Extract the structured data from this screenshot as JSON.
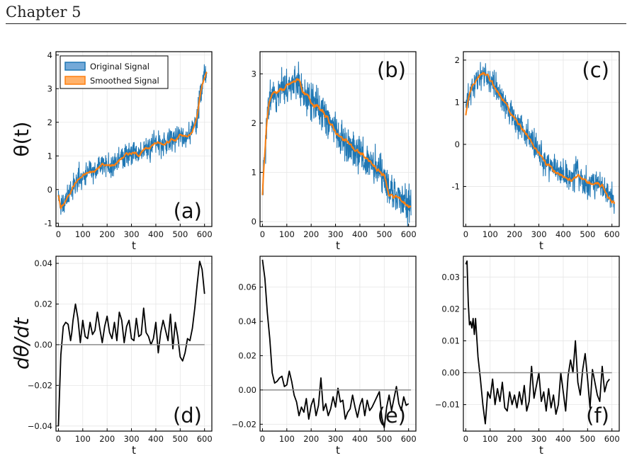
{
  "header": {
    "title": "Chapter 5"
  },
  "chart_data": [
    {
      "panel": "(a)",
      "type": "line",
      "xlabel": "t",
      "ylabel": "θ(t)",
      "xlim": [
        -10,
        630
      ],
      "ylim": [
        -1.1,
        4.1
      ],
      "xticks": [
        0,
        100,
        200,
        300,
        400,
        500,
        600
      ],
      "yticks": [
        -1,
        0,
        1,
        2,
        3,
        4
      ],
      "grid": true,
      "legend": "top-left",
      "series": [
        {
          "name": "Original Signal",
          "role": "noisy",
          "color": "#1f77b4",
          "noise": 0.17,
          "seed": 11,
          "x": [
            0,
            10,
            20,
            40,
            60,
            80,
            100,
            120,
            150,
            180,
            200,
            230,
            260,
            280,
            300,
            330,
            360,
            380,
            400,
            430,
            460,
            480,
            500,
            520,
            540,
            560,
            570,
            580,
            590,
            600,
            610
          ],
          "y": [
            -0.15,
            -0.55,
            -0.45,
            -0.2,
            0.1,
            0.3,
            0.4,
            0.5,
            0.55,
            0.75,
            0.7,
            0.75,
            0.95,
            1.05,
            1.1,
            1.05,
            1.2,
            1.3,
            1.4,
            1.35,
            1.5,
            1.45,
            1.6,
            1.55,
            1.6,
            1.9,
            2.2,
            2.7,
            3.1,
            3.4,
            3.55
          ]
        },
        {
          "name": "Smoothed Signal",
          "role": "smooth",
          "color": "#ff7f0e",
          "x": [
            0,
            10,
            20,
            40,
            60,
            80,
            100,
            120,
            150,
            180,
            200,
            230,
            260,
            280,
            300,
            330,
            360,
            380,
            400,
            430,
            460,
            480,
            500,
            520,
            540,
            560,
            570,
            580,
            590,
            600,
            610
          ],
          "y": [
            -0.15,
            -0.55,
            -0.45,
            -0.2,
            0.1,
            0.3,
            0.4,
            0.5,
            0.55,
            0.75,
            0.7,
            0.75,
            0.95,
            1.05,
            1.1,
            1.05,
            1.2,
            1.3,
            1.4,
            1.35,
            1.5,
            1.45,
            1.6,
            1.55,
            1.6,
            1.9,
            2.2,
            2.7,
            3.1,
            3.4,
            3.55
          ]
        }
      ]
    },
    {
      "panel": "(b)",
      "type": "line",
      "xlabel": "t",
      "ylabel": "",
      "xlim": [
        -10,
        630
      ],
      "ylim": [
        -0.1,
        3.45
      ],
      "xticks": [
        0,
        100,
        200,
        300,
        400,
        500,
        600
      ],
      "yticks": [
        0,
        1,
        2,
        3
      ],
      "grid": true,
      "series": [
        {
          "name": "Original Signal",
          "role": "noisy",
          "color": "#1f77b4",
          "noise": 0.19,
          "seed": 23,
          "x": [
            0,
            5,
            15,
            25,
            40,
            60,
            90,
            120,
            150,
            170,
            200,
            230,
            260,
            290,
            320,
            350,
            380,
            410,
            440,
            470,
            500,
            520,
            550,
            580,
            610
          ],
          "y": [
            0.55,
            1.0,
            1.8,
            2.35,
            2.6,
            2.65,
            2.7,
            2.8,
            2.9,
            2.6,
            2.45,
            2.3,
            2.15,
            1.9,
            1.7,
            1.6,
            1.45,
            1.35,
            1.2,
            1.05,
            0.95,
            0.55,
            0.5,
            0.4,
            0.3
          ]
        },
        {
          "name": "Smoothed Signal",
          "role": "smooth",
          "color": "#ff7f0e",
          "x": [
            0,
            5,
            15,
            25,
            40,
            60,
            90,
            120,
            150,
            170,
            200,
            230,
            260,
            290,
            320,
            350,
            380,
            410,
            440,
            470,
            500,
            520,
            550,
            580,
            610
          ],
          "y": [
            0.55,
            1.0,
            1.8,
            2.35,
            2.6,
            2.65,
            2.7,
            2.8,
            2.9,
            2.6,
            2.45,
            2.3,
            2.15,
            1.9,
            1.7,
            1.6,
            1.45,
            1.35,
            1.2,
            1.05,
            0.95,
            0.55,
            0.5,
            0.4,
            0.3
          ]
        }
      ]
    },
    {
      "panel": "(c)",
      "type": "line",
      "xlabel": "t",
      "ylabel": "",
      "xlim": [
        -10,
        630
      ],
      "ylim": [
        -1.95,
        2.2
      ],
      "xticks": [
        0,
        100,
        200,
        300,
        400,
        500,
        600
      ],
      "yticks": [
        -1,
        0,
        1,
        2
      ],
      "grid": true,
      "series": [
        {
          "name": "Original Signal",
          "role": "noisy",
          "color": "#1f77b4",
          "noise": 0.16,
          "seed": 37,
          "x": [
            0,
            10,
            25,
            45,
            70,
            90,
            120,
            150,
            180,
            210,
            240,
            270,
            300,
            330,
            360,
            400,
            430,
            460,
            480,
            500,
            530,
            560,
            590,
            610
          ],
          "y": [
            0.7,
            1.05,
            1.35,
            1.55,
            1.7,
            1.6,
            1.35,
            1.1,
            0.8,
            0.55,
            0.3,
            0.05,
            -0.2,
            -0.45,
            -0.6,
            -0.75,
            -0.85,
            -0.7,
            -0.85,
            -0.95,
            -0.95,
            -1.0,
            -1.25,
            -1.4
          ]
        },
        {
          "name": "Smoothed Signal",
          "role": "smooth",
          "color": "#ff7f0e",
          "x": [
            0,
            10,
            25,
            45,
            70,
            90,
            120,
            150,
            180,
            210,
            240,
            270,
            300,
            330,
            360,
            400,
            430,
            460,
            480,
            500,
            530,
            560,
            590,
            610
          ],
          "y": [
            0.7,
            1.05,
            1.35,
            1.55,
            1.7,
            1.6,
            1.35,
            1.1,
            0.8,
            0.55,
            0.3,
            0.05,
            -0.2,
            -0.45,
            -0.6,
            -0.75,
            -0.85,
            -0.7,
            -0.85,
            -0.95,
            -0.95,
            -1.0,
            -1.25,
            -1.4
          ]
        }
      ]
    },
    {
      "panel": "(d)",
      "type": "line",
      "xlabel": "t",
      "ylabel": "dθ/dt",
      "xlim": [
        -10,
        630
      ],
      "ylim": [
        -0.0425,
        0.0435
      ],
      "xticks": [
        0,
        100,
        200,
        300,
        400,
        500,
        600
      ],
      "yticks": [
        -0.04,
        -0.02,
        0.0,
        0.02,
        0.04
      ],
      "ytick_labels": [
        "−0.04",
        "−0.02",
        "0.00",
        "0.02",
        "0.04"
      ],
      "grid": true,
      "zero_line": true,
      "series": [
        {
          "name": "",
          "role": "derivative",
          "color": "#000000",
          "x": [
            0,
            10,
            20,
            30,
            40,
            50,
            55,
            60,
            70,
            80,
            90,
            100,
            110,
            120,
            130,
            140,
            150,
            160,
            170,
            180,
            190,
            200,
            210,
            220,
            230,
            240,
            250,
            260,
            270,
            280,
            290,
            300,
            310,
            320,
            330,
            340,
            350,
            360,
            370,
            380,
            390,
            400,
            410,
            420,
            430,
            440,
            450,
            460,
            470,
            480,
            490,
            500,
            510,
            520,
            530,
            540,
            550,
            560,
            570,
            580,
            590,
            600
          ],
          "y": [
            -0.04,
            -0.005,
            0.009,
            0.011,
            0.01,
            0.002,
            0.006,
            0.012,
            0.02,
            0.013,
            0.001,
            0.012,
            0.004,
            0.003,
            0.011,
            0.005,
            0.007,
            0.016,
            0.008,
            0.001,
            0.009,
            0.014,
            0.006,
            0.003,
            0.011,
            0.002,
            0.016,
            0.012,
            0.001,
            0.009,
            0.012,
            0.003,
            0.002,
            0.013,
            0.004,
            0.005,
            0.018,
            0.006,
            0.004,
            0.0,
            0.003,
            0.011,
            -0.004,
            0.006,
            0.012,
            0.007,
            0.002,
            0.015,
            -0.002,
            0.011,
            0.004,
            -0.006,
            -0.008,
            -0.004,
            0.003,
            0.002,
            0.008,
            0.018,
            0.03,
            0.041,
            0.037,
            0.025
          ]
        },
        {
          "name": "",
          "role": "zero",
          "color": "#8c8c8c",
          "x": [
            0,
            600
          ],
          "y": [
            0,
            0
          ]
        }
      ]
    },
    {
      "panel": "(e)",
      "type": "line",
      "xlabel": "t",
      "ylabel": "",
      "xlim": [
        -10,
        630
      ],
      "ylim": [
        -0.024,
        0.078
      ],
      "xticks": [
        0,
        100,
        200,
        300,
        400,
        500,
        600
      ],
      "yticks": [
        -0.02,
        0.0,
        0.02,
        0.04,
        0.06
      ],
      "ytick_labels": [
        "−0.02",
        "0.00",
        "0.02",
        "0.04",
        "0.06"
      ],
      "grid": true,
      "zero_line": true,
      "series": [
        {
          "name": "",
          "role": "derivative",
          "color": "#000000",
          "x": [
            0,
            10,
            20,
            30,
            40,
            50,
            60,
            70,
            80,
            90,
            100,
            110,
            120,
            130,
            140,
            150,
            160,
            170,
            180,
            190,
            200,
            210,
            220,
            230,
            240,
            250,
            260,
            270,
            280,
            290,
            300,
            310,
            320,
            330,
            340,
            350,
            360,
            370,
            380,
            390,
            400,
            410,
            420,
            430,
            440,
            450,
            460,
            470,
            480,
            490,
            500,
            510,
            520,
            530,
            540,
            550,
            560,
            570,
            580,
            590,
            600
          ],
          "y": [
            0.076,
            0.065,
            0.045,
            0.03,
            0.01,
            0.004,
            0.005,
            0.007,
            0.008,
            0.002,
            0.003,
            0.011,
            0.005,
            -0.003,
            -0.007,
            -0.015,
            -0.01,
            -0.013,
            -0.005,
            -0.017,
            -0.009,
            -0.005,
            -0.015,
            -0.009,
            0.007,
            -0.012,
            -0.008,
            -0.015,
            -0.011,
            -0.004,
            -0.01,
            0.001,
            -0.007,
            -0.006,
            -0.017,
            -0.013,
            -0.011,
            -0.003,
            -0.01,
            -0.016,
            -0.009,
            -0.005,
            -0.015,
            -0.006,
            -0.012,
            -0.01,
            -0.007,
            -0.004,
            -0.001,
            -0.016,
            -0.022,
            -0.01,
            -0.003,
            -0.012,
            -0.005,
            0.002,
            -0.008,
            -0.012,
            -0.004,
            -0.009,
            -0.008
          ]
        },
        {
          "name": "",
          "role": "zero",
          "color": "#8c8c8c",
          "x": [
            0,
            610
          ],
          "y": [
            0,
            0
          ]
        }
      ]
    },
    {
      "panel": "(f)",
      "type": "line",
      "xlabel": "t",
      "ylabel": "",
      "xlim": [
        -10,
        630
      ],
      "ylim": [
        -0.0183,
        0.0365
      ],
      "xticks": [
        0,
        100,
        200,
        300,
        400,
        500,
        600
      ],
      "yticks": [
        -0.01,
        0.0,
        0.01,
        0.02,
        0.03
      ],
      "ytick_labels": [
        "−0.01",
        "0.00",
        "0.01",
        "0.02",
        "0.03"
      ],
      "grid": true,
      "zero_line": true,
      "series": [
        {
          "name": "",
          "role": "derivative",
          "color": "#000000",
          "x": [
            0,
            5,
            10,
            15,
            20,
            25,
            30,
            35,
            40,
            50,
            60,
            70,
            80,
            90,
            100,
            110,
            120,
            130,
            140,
            150,
            160,
            170,
            180,
            190,
            200,
            210,
            220,
            230,
            240,
            250,
            260,
            270,
            280,
            290,
            300,
            310,
            320,
            330,
            340,
            350,
            360,
            370,
            380,
            390,
            400,
            410,
            420,
            430,
            440,
            450,
            460,
            470,
            480,
            490,
            500,
            510,
            520,
            530,
            540,
            550,
            560,
            570,
            580,
            590
          ],
          "y": [
            0.034,
            0.035,
            0.022,
            0.015,
            0.016,
            0.014,
            0.017,
            0.012,
            0.017,
            0.005,
            -0.002,
            -0.01,
            -0.016,
            -0.006,
            -0.008,
            -0.002,
            -0.01,
            -0.005,
            -0.009,
            -0.003,
            -0.011,
            -0.012,
            -0.006,
            -0.01,
            -0.007,
            -0.011,
            -0.006,
            -0.01,
            -0.004,
            -0.012,
            -0.009,
            0.002,
            -0.008,
            -0.004,
            0.0,
            -0.009,
            -0.006,
            -0.012,
            -0.005,
            -0.011,
            -0.007,
            -0.013,
            -0.01,
            0.0,
            -0.006,
            -0.012,
            -0.001,
            0.004,
            0.0,
            0.01,
            -0.003,
            -0.007,
            0.001,
            0.006,
            -0.002,
            -0.011,
            0.001,
            -0.003,
            -0.007,
            -0.009,
            0.002,
            -0.006,
            -0.003,
            -0.002
          ]
        },
        {
          "name": "",
          "role": "zero",
          "color": "#8c8c8c",
          "x": [
            0,
            600
          ],
          "y": [
            0,
            0
          ]
        }
      ]
    }
  ]
}
